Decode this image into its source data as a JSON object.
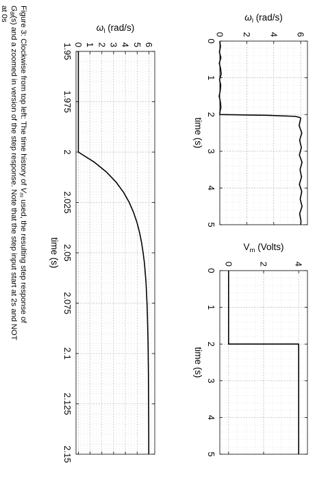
{
  "figure": {
    "caption_lines": [
      "Figure 3:  Clockwise from top left:  The time history of V",
      "G",
      "(s) and a zoomed in version of the step response.  Note that the step input start at 2s and NOT",
      "at 0s"
    ],
    "caption": "Figure 3: Clockwise from top left: The time history of Vm used, the resulting step response of Gθl(s) and a zoomed in version of the step response. Note that the step input start at 2s and NOT at 0s",
    "caption_line1_a": "Figure 3:  Clockwise from top left:  The time history of ",
    "caption_line1_v": "V",
    "caption_line1_sub": "m",
    "caption_line1_b": " used, the resulting step response of",
    "caption_line2_g": "G",
    "caption_line2_sub": "θl",
    "caption_line2_b": "(s) and a zoomed in version of the step response.  Note that the step input start at 2s and NOT",
    "caption_line3": "at 0s"
  },
  "chart_data": [
    {
      "type": "line",
      "xlabel": "time (s)",
      "ylabel": "ω_l (rad/s)",
      "ylabel_main": "ω",
      "ylabel_sub": "l",
      "ylabel_unit": " (rad/s)",
      "xlim": [
        0,
        5
      ],
      "ylim": [
        0,
        6.5
      ],
      "xticks": [
        "0",
        "1",
        "2",
        "3",
        "4",
        "5"
      ],
      "yticks": [
        "0",
        "2",
        "4",
        "6"
      ],
      "xtick_values": [
        0,
        1,
        2,
        3,
        4,
        5
      ],
      "ytick_values": [
        0,
        2,
        4,
        6
      ],
      "grid": true,
      "series": [
        {
          "x": [
            0,
            0.15,
            0.3,
            0.45,
            0.6,
            0.75,
            0.9,
            1.05,
            1.2,
            1.35,
            1.5,
            1.65,
            1.8,
            1.95,
            2.0,
            2.02,
            2.05,
            2.08,
            2.1,
            2.3,
            2.5,
            2.7,
            2.9,
            3.1,
            3.3,
            3.5,
            3.7,
            3.9,
            4.1,
            4.3,
            4.5,
            4.7,
            4.9,
            5.0
          ],
          "y": [
            0,
            0.05,
            -0.03,
            0.08,
            -0.04,
            0.06,
            0.1,
            -0.02,
            0.07,
            0.03,
            -0.05,
            0.04,
            0.08,
            0.0,
            0.0,
            3.5,
            5.6,
            5.95,
            6.0,
            5.88,
            6.08,
            5.92,
            6.05,
            5.9,
            6.1,
            5.95,
            6.06,
            5.9,
            6.08,
            5.96,
            6.1,
            5.92,
            6.02,
            6.0
          ]
        }
      ]
    },
    {
      "type": "line",
      "xlabel": "time (s)",
      "ylabel": "V_m (Volts)",
      "ylabel_main": "V",
      "ylabel_sub": "m",
      "ylabel_unit": " (Volts)",
      "xlim": [
        0,
        5
      ],
      "ylim": [
        -0.5,
        4.5
      ],
      "xticks": [
        "0",
        "1",
        "2",
        "3",
        "4",
        "5"
      ],
      "yticks": [
        "0",
        "2",
        "4"
      ],
      "xtick_values": [
        0,
        1,
        2,
        3,
        4,
        5
      ],
      "ytick_values": [
        0,
        2,
        4
      ],
      "grid": true,
      "series": [
        {
          "x": [
            0,
            2,
            2,
            5
          ],
          "y": [
            0,
            0,
            4,
            4
          ]
        }
      ]
    },
    {
      "type": "line",
      "xlabel": "time (s)",
      "ylabel": "ω_l (rad/s)",
      "ylabel_main": "ω",
      "ylabel_sub": "l",
      "ylabel_unit": " (rad/s)",
      "xlim": [
        1.95,
        2.15
      ],
      "ylim": [
        -0.2,
        6.5
      ],
      "xticks": [
        "1.95",
        "1.975",
        "2",
        "2.025",
        "2.05",
        "2.075",
        "2.1",
        "2.125",
        "2.15"
      ],
      "yticks": [
        "0",
        "1",
        "2",
        "3",
        "4",
        "5",
        "6"
      ],
      "xtick_values": [
        1.95,
        1.975,
        2.0,
        2.025,
        2.05,
        2.075,
        2.1,
        2.125,
        2.15
      ],
      "ytick_values": [
        0,
        1,
        2,
        3,
        4,
        5,
        6
      ],
      "grid": true,
      "series": [
        {
          "x": [
            1.95,
            2.0,
            2.005,
            2.01,
            2.015,
            2.02,
            2.025,
            2.03,
            2.035,
            2.04,
            2.045,
            2.05,
            2.055,
            2.06,
            2.065,
            2.07,
            2.075,
            2.08,
            2.085,
            2.09,
            2.095,
            2.1,
            2.11,
            2.12,
            2.13,
            2.14,
            2.15
          ],
          "y": [
            0,
            0,
            1.36,
            2.41,
            3.22,
            3.85,
            4.33,
            4.7,
            4.99,
            5.21,
            5.38,
            5.51,
            5.62,
            5.69,
            5.76,
            5.8,
            5.84,
            5.87,
            5.89,
            5.91,
            5.93,
            5.94,
            5.96,
            5.97,
            5.98,
            5.99,
            5.99
          ]
        }
      ]
    }
  ]
}
